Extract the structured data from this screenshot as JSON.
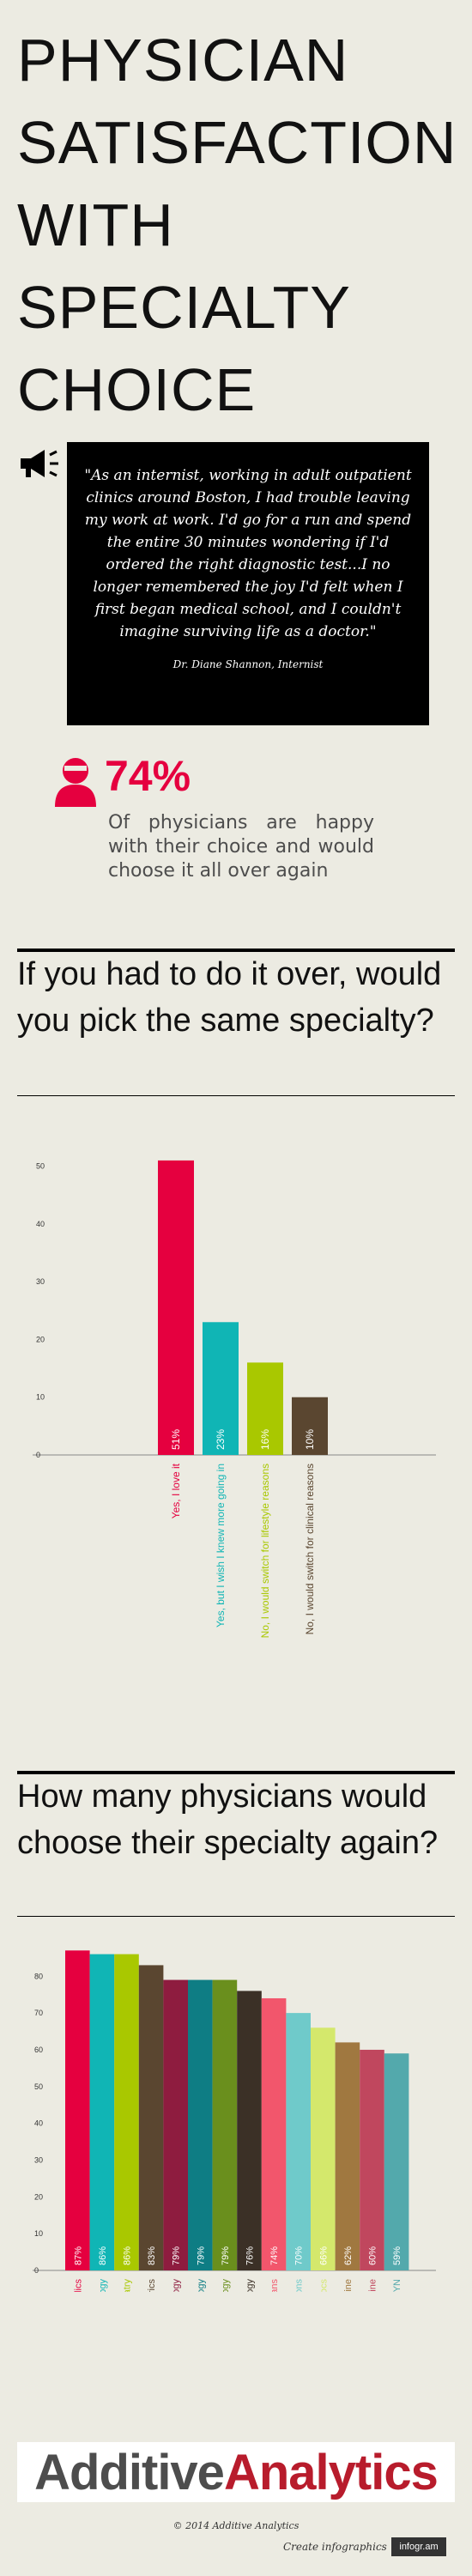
{
  "page": {
    "title": "PHYSICIAN SATISFACTION WITH SPECIALTY CHOICE",
    "quote": "\"As an internist, working in adult outpatient clinics around Boston, I had trouble leaving my work at work. I'd go for a run and spend the entire 30 minutes wondering if I'd ordered the right diagnostic test...I no longer remembered the joy I'd felt when I first began medical school, and I couldn't imagine surviving life as a doctor.\"",
    "quote_author": "Dr. Diane Shannon, Internist",
    "stat_value": "74%",
    "stat_text": "Of physicians are happy with their choice and would choose it all over again",
    "section1_title": "If you had to do it over, would you pick the same specialty?",
    "section2_title": "How many physicians would choose their specialty again?",
    "logo_part1": "Additive",
    "logo_part2": "Analytics",
    "copyright": "© 2014 Additive Analytics",
    "footer_create": "Create infographics",
    "footer_badge": "infogr.am"
  },
  "colors": {
    "accent": "#e5003f",
    "teal": "#10b5b5",
    "lime": "#a9c800",
    "brown": "#5a4630"
  },
  "chart_data": [
    {
      "type": "bar",
      "title": "If you had to do it over, would you pick the same specialty?",
      "categories": [
        "Yes, I love it",
        "Yes, but I wish I knew more going in",
        "No, I would switch for lifestyle reasons",
        "No, I would switch for clinical reasons"
      ],
      "values": [
        51,
        23,
        16,
        10
      ],
      "value_labels": [
        "51%",
        "23%",
        "16%",
        "10%"
      ],
      "colors": [
        "#e5003f",
        "#10b5b5",
        "#a9c800",
        "#5a4630"
      ],
      "yticks": [
        0,
        10,
        20,
        30,
        40,
        50
      ],
      "ylim": [
        0,
        55
      ],
      "grid": false
    },
    {
      "type": "bar",
      "title": "How many physicians would choose their specialty again?",
      "categories": [
        "Orthopedics",
        "Oncology",
        "Psychiatry",
        "Pediatrics",
        "Cardiology",
        "Neurology",
        "Pathology",
        "Anesthesiology",
        "All physicians",
        "Surgeons",
        "ER Docs",
        "Family Medicine",
        "Internal Medicine",
        "OB/GYN"
      ],
      "values": [
        87,
        86,
        86,
        83,
        79,
        79,
        79,
        76,
        74,
        70,
        66,
        62,
        60,
        59
      ],
      "value_labels": [
        "87%",
        "86%",
        "86%",
        "83%",
        "79%",
        "79%",
        "79%",
        "76%",
        "74%",
        "70%",
        "66%",
        "62%",
        "60%",
        "59%"
      ],
      "colors": [
        "#e5003f",
        "#10b5b5",
        "#a9c800",
        "#5a4630",
        "#8e1c3f",
        "#0e7d84",
        "#6a8f1d",
        "#3b3026",
        "#f2566c",
        "#6fcaca",
        "#d4e86c",
        "#a07840",
        "#c0475e",
        "#53a9ac"
      ],
      "label_colors": [
        "#e5003f",
        "#10b5b5",
        "#a9c800",
        "#5a4630",
        "#8e1c3f",
        "#0e7d84",
        "#6a8f1d",
        "#3b3026",
        "#f2566c",
        "#6fcaca",
        "#d4e86c",
        "#a07840",
        "#c0475e",
        "#53a9ac"
      ],
      "yticks": [
        0,
        10,
        20,
        30,
        40,
        50,
        60,
        70,
        80
      ],
      "ylim": [
        0,
        88
      ],
      "grid": false
    }
  ]
}
